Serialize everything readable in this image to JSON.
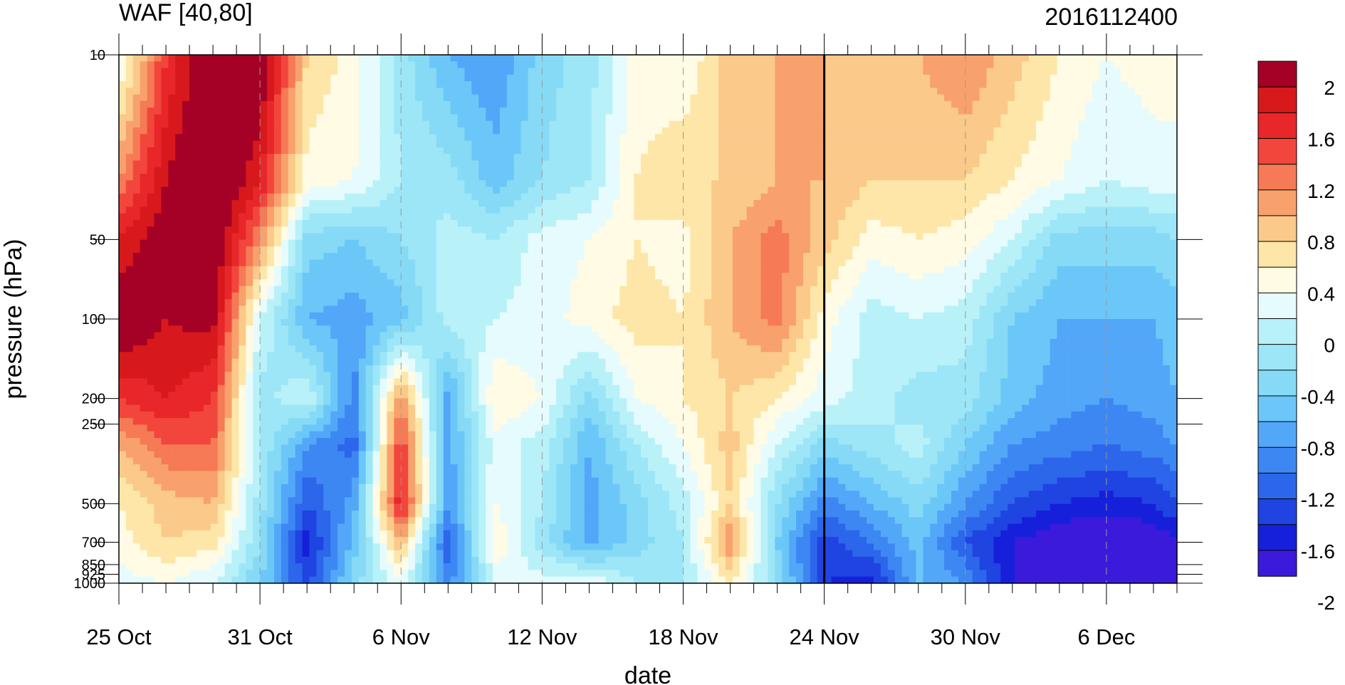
{
  "chart_data": {
    "type": "heatmap",
    "title": "WAF [40,80]",
    "subtitle": "2016112400",
    "xlabel": "date",
    "ylabel": "pressure (hPa)",
    "x_ticks": [
      "25 Oct",
      "31 Oct",
      "6 Nov",
      "12 Nov",
      "18 Nov",
      "24 Nov",
      "30 Nov",
      "6 Dec"
    ],
    "x_tick_days": [
      0,
      6,
      12,
      18,
      24,
      30,
      36,
      42
    ],
    "x_range_days": [
      0,
      45
    ],
    "marker_day": 30,
    "y_scale": "log",
    "y_ticks": [
      "10",
      "50",
      "100",
      "200",
      "250",
      "500",
      "700",
      "850",
      "925",
      "1000"
    ],
    "y_tick_values": [
      10,
      50,
      100,
      200,
      250,
      500,
      700,
      850,
      925,
      1000
    ],
    "y_range": [
      10,
      1000
    ],
    "colorbar": {
      "labels": [
        "2",
        "1.6",
        "1.2",
        "0.8",
        "0.4",
        "0",
        "-0.4",
        "-0.8",
        "-1.2",
        "-1.6",
        "-2"
      ],
      "label_values": [
        2,
        1.6,
        1.2,
        0.8,
        0.4,
        0,
        -0.4,
        -0.8,
        -1.2,
        -1.6,
        -2
      ],
      "colors": [
        "#a50026",
        "#d7191c",
        "#e8272a",
        "#f2463c",
        "#f57a55",
        "#f8a16c",
        "#fbc98a",
        "#fde6a8",
        "#fffbe4",
        "#e6fbfd",
        "#b9f1f8",
        "#9ce6f7",
        "#86daf6",
        "#6cc7f9",
        "#53a7f8",
        "#3d87f3",
        "#2c66ea",
        "#1f44e2",
        "#1620da",
        "#3b1adb"
      ],
      "levels": [
        2.2,
        2.0,
        1.8,
        1.6,
        1.4,
        1.2,
        1.0,
        0.8,
        0.6,
        0.4,
        0.2,
        0.0,
        -0.2,
        -0.4,
        -0.6,
        -0.8,
        -1.0,
        -1.2,
        -1.4,
        -1.6,
        -1.8,
        -2.0,
        -2.2
      ]
    },
    "grid_x_days": [
      0,
      2,
      4,
      6,
      8,
      10,
      12,
      14,
      16,
      18,
      20,
      22,
      24,
      26,
      28,
      30,
      32,
      34,
      36,
      38,
      40,
      42,
      44,
      45
    ],
    "grid_y_hpa": [
      10,
      30,
      50,
      100,
      200,
      300,
      500,
      700,
      1000
    ],
    "values": [
      [
        0.3,
        1.6,
        2.3,
        2.3,
        0.8,
        0.5,
        -0.1,
        -0.6,
        -0.8,
        -0.3,
        -0.1,
        0.5,
        0.4,
        0.9,
        1.0,
        1.0,
        0.9,
        1.0,
        1.2,
        0.9,
        0.6,
        0.4,
        0.5,
        0.5
      ],
      [
        1.2,
        2.0,
        2.4,
        1.8,
        0.5,
        0.4,
        0.0,
        -0.1,
        -0.5,
        -0.2,
        0.0,
        0.6,
        0.8,
        0.8,
        1.0,
        1.0,
        0.8,
        0.8,
        0.8,
        0.6,
        0.4,
        0.2,
        0.3,
        0.3
      ],
      [
        1.8,
        2.2,
        2.3,
        1.2,
        -0.3,
        -0.4,
        -0.2,
        0.1,
        0.0,
        0.3,
        0.4,
        0.6,
        0.5,
        1.0,
        1.3,
        0.9,
        0.5,
        0.6,
        0.5,
        0.2,
        -0.3,
        -0.3,
        -0.3,
        -0.2
      ],
      [
        2.3,
        2.0,
        2.1,
        0.2,
        -0.6,
        -0.7,
        -0.5,
        0.1,
        0.2,
        0.3,
        0.5,
        0.7,
        0.6,
        1.0,
        1.3,
        0.5,
        0.1,
        0.2,
        0.1,
        -0.4,
        -0.6,
        -0.6,
        -0.6,
        -0.5
      ],
      [
        1.6,
        1.8,
        1.6,
        -0.1,
        0.2,
        -0.9,
        1.2,
        -0.7,
        0.6,
        0.4,
        -0.3,
        0.4,
        0.6,
        0.8,
        0.6,
        0.3,
        0.1,
        -0.1,
        -0.1,
        -0.5,
        -0.7,
        -0.8,
        -0.7,
        -0.6
      ],
      [
        1.0,
        1.4,
        1.4,
        0.0,
        -0.8,
        -1.1,
        1.6,
        -0.7,
        0.3,
        0.1,
        -0.6,
        0.0,
        0.4,
        0.9,
        0.2,
        -0.3,
        -0.1,
        0.1,
        -0.4,
        -0.8,
        -0.9,
        -1.0,
        -0.9,
        -0.8
      ],
      [
        0.6,
        0.9,
        1.0,
        -0.1,
        -1.2,
        -0.7,
        1.8,
        -0.8,
        0.4,
        0.0,
        -0.7,
        -0.3,
        0.1,
        0.8,
        -0.2,
        -0.9,
        -0.6,
        -0.3,
        -0.8,
        -1.2,
        -1.4,
        -1.5,
        -1.4,
        -1.2
      ],
      [
        0.5,
        0.8,
        0.7,
        -0.2,
        -1.5,
        -0.5,
        1.0,
        -1.2,
        0.6,
        -0.1,
        -0.7,
        -0.3,
        0.0,
        1.2,
        -0.4,
        -1.3,
        -1.0,
        -0.5,
        -1.2,
        -1.6,
        -1.8,
        -1.9,
        -1.8,
        -1.6
      ],
      [
        0.3,
        0.4,
        0.2,
        -0.4,
        -1.3,
        -0.3,
        0.3,
        -0.9,
        0.2,
        0.3,
        0.4,
        0.0,
        0.0,
        0.6,
        -0.2,
        -1.4,
        -1.5,
        -0.6,
        -0.8,
        -1.6,
        -2.0,
        -2.0,
        -1.7,
        -1.6
      ]
    ]
  }
}
